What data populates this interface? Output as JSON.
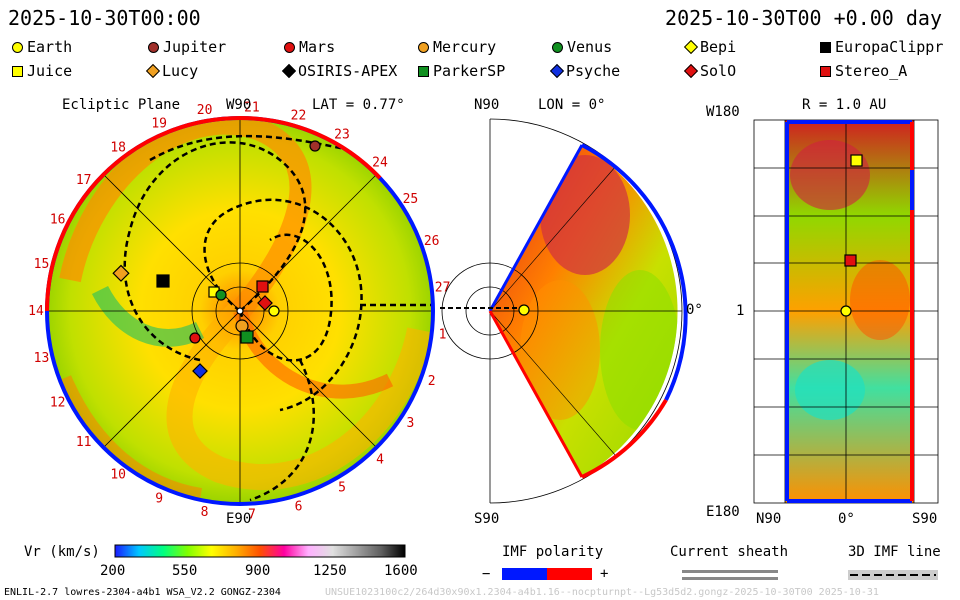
{
  "header": {
    "left_time": "2025-10-30T00:00",
    "right_time": "2025-10-30T00 +0.00 day"
  },
  "legend": [
    {
      "name": "Earth",
      "shape": "circle",
      "color": "#ffff00"
    },
    {
      "name": "Jupiter",
      "shape": "circle",
      "color": "#a0302a"
    },
    {
      "name": "Mars",
      "shape": "circle",
      "color": "#e01010"
    },
    {
      "name": "Mercury",
      "shape": "circle",
      "color": "#f0a020"
    },
    {
      "name": "Venus",
      "shape": "circle",
      "color": "#109020"
    },
    {
      "name": "Bepi",
      "shape": "diamond",
      "color": "#ffff00"
    },
    {
      "name": "EuropaClippr",
      "shape": "square",
      "color": "#000000"
    },
    {
      "name": "Juice",
      "shape": "square",
      "color": "#ffff00"
    },
    {
      "name": "Lucy",
      "shape": "diamond",
      "color": "#f0a020"
    },
    {
      "name": "OSIRIS-APEX",
      "shape": "diamond",
      "color": "#000000"
    },
    {
      "name": "ParkerSP",
      "shape": "square",
      "color": "#109020"
    },
    {
      "name": "Psyche",
      "shape": "diamond",
      "color": "#1030e0"
    },
    {
      "name": "SolO",
      "shape": "diamond",
      "color": "#e01010"
    },
    {
      "name": "Stereo_A",
      "shape": "square",
      "color": "#e01010"
    }
  ],
  "panel_ecliptic": {
    "title": "Ecliptic Plane",
    "top_label": "W90",
    "bottom_label": "E90",
    "lat_label": "LAT = 0.77°",
    "sector_numbers": [
      "20",
      "21",
      "22",
      "23",
      "24",
      "25",
      "26",
      "27",
      "1",
      "2",
      "3",
      "4",
      "5",
      "6",
      "7",
      "8",
      "9",
      "10",
      "11",
      "12",
      "13",
      "14",
      "15",
      "16",
      "17",
      "18",
      "19"
    ]
  },
  "panel_meridional": {
    "top_label": "N90",
    "bottom_label": "S90",
    "lon_label": "LON = 0°",
    "right_label": "0°"
  },
  "panel_radial": {
    "r_label": "R = 1.0 AU",
    "top_left": "W180",
    "bottom_left": "E180",
    "mid_left": "1",
    "bottom_axis": [
      "N90",
      "0°",
      "S90"
    ]
  },
  "colorbar": {
    "label": "Vr (km/s)",
    "ticks": [
      "200",
      "550",
      "900",
      "1250",
      "1600"
    ],
    "stops": [
      "#1a1aff",
      "#00c8ff",
      "#00ff80",
      "#80ff00",
      "#ffff00",
      "#ffb000",
      "#ff5000",
      "#ff00a0",
      "#ffb0ff",
      "#e0e0e0",
      "#a0a0a0",
      "#606060",
      "#000000"
    ]
  },
  "imf": {
    "label": "IMF polarity",
    "minus": "−",
    "plus": "+",
    "neg_color": "#0018ff",
    "pos_color": "#ff0000"
  },
  "sheath": {
    "label": "Current sheath"
  },
  "line3d": {
    "label": "3D IMF line"
  },
  "footer": {
    "left": "ENLIL-2.7 lowres-2304-a4b1 WSA_V2.2 GONGZ-2304",
    "right": "UNSUE1023100c2/264d30x90x1.2304-a4b1.16--nocpturnpt--Lg53d5d2.gongz-2025-10-30T00   2025-10-31"
  }
}
